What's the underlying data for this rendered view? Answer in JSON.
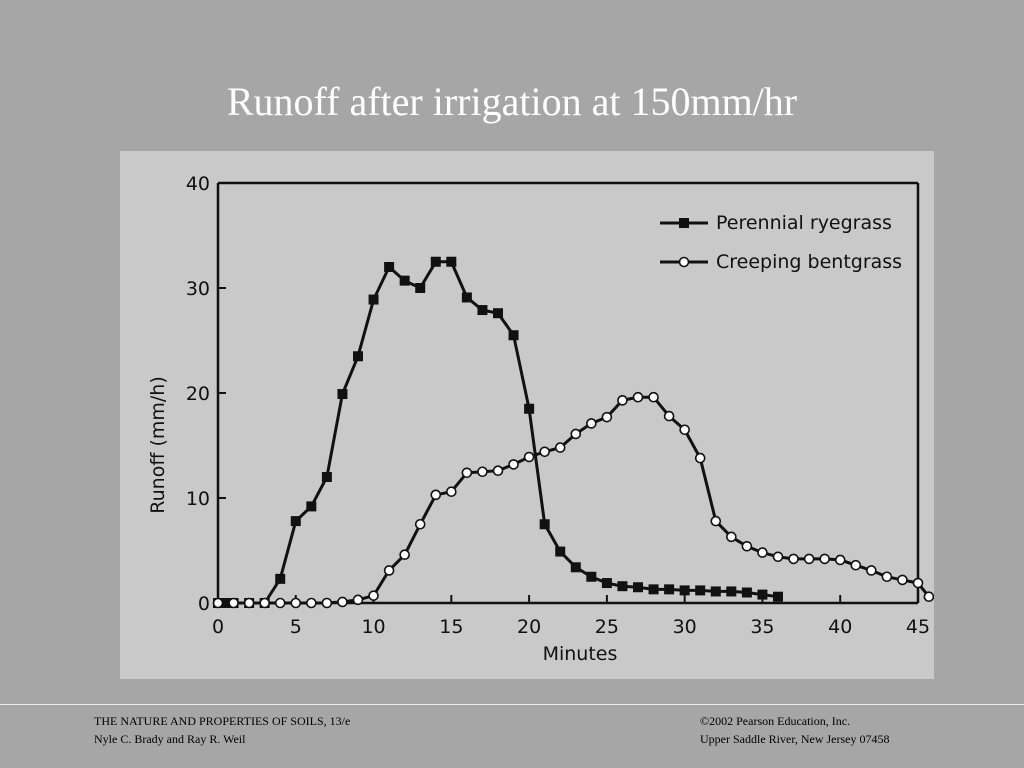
{
  "slide": {
    "title": "Runoff after irrigation at 150mm/hr"
  },
  "footer": {
    "left_line1": "THE NATURE AND PROPERTIES OF SOILS, 13/e",
    "left_line2": "Nyle C. Brady and Ray R. Weil",
    "right_line1": "©2002 Pearson Education, Inc.",
    "right_line2": "Upper Saddle River, New Jersey  07458"
  },
  "colors": {
    "slide_background": "#a6a6a6",
    "figure_background": "#c9c9c9",
    "ink": "#111111"
  },
  "chart_data": {
    "type": "line",
    "xlabel": "Minutes",
    "ylabel": "Runoff (mm/h)",
    "xlim": [
      0,
      45
    ],
    "ylim": [
      0,
      40
    ],
    "x_ticks": [
      "0",
      "5",
      "10",
      "15",
      "20",
      "25",
      "30",
      "35",
      "40",
      "45"
    ],
    "y_ticks": [
      "0",
      "10",
      "20",
      "30",
      "40"
    ],
    "grid": false,
    "legend_position": "top-right",
    "series": [
      {
        "name": "Perennial ryegrass",
        "marker": "filled-square",
        "points": [
          [
            0,
            0
          ],
          [
            0.5,
            0
          ],
          [
            1,
            0
          ],
          [
            2,
            0
          ],
          [
            3,
            0
          ],
          [
            4,
            2.3
          ],
          [
            5,
            7.8
          ],
          [
            6,
            9.2
          ],
          [
            7,
            12
          ],
          [
            8,
            19.9
          ],
          [
            9,
            23.5
          ],
          [
            10,
            28.9
          ],
          [
            11,
            32
          ],
          [
            12,
            30.7
          ],
          [
            13,
            30
          ],
          [
            14,
            32.5
          ],
          [
            15,
            32.5
          ],
          [
            16,
            29.1
          ],
          [
            17,
            27.9
          ],
          [
            18,
            27.6
          ],
          [
            19,
            25.5
          ],
          [
            20,
            18.5
          ],
          [
            21,
            7.5
          ],
          [
            22,
            4.9
          ],
          [
            23,
            3.4
          ],
          [
            24,
            2.5
          ],
          [
            25,
            1.9
          ],
          [
            26,
            1.6
          ],
          [
            27,
            1.5
          ],
          [
            28,
            1.3
          ],
          [
            29,
            1.3
          ],
          [
            30,
            1.2
          ],
          [
            31,
            1.2
          ],
          [
            32,
            1.1
          ],
          [
            33,
            1.1
          ],
          [
            34,
            1
          ],
          [
            35,
            0.8
          ],
          [
            36,
            0.6
          ]
        ]
      },
      {
        "name": "Creeping bentgrass",
        "marker": "open-circle",
        "points": [
          [
            0,
            0
          ],
          [
            1,
            0
          ],
          [
            2,
            0
          ],
          [
            3,
            0
          ],
          [
            4,
            0
          ],
          [
            5,
            0
          ],
          [
            6,
            0
          ],
          [
            7,
            0
          ],
          [
            8,
            0.1
          ],
          [
            9,
            0.3
          ],
          [
            10,
            0.7
          ],
          [
            11,
            3.1
          ],
          [
            12,
            4.6
          ],
          [
            13,
            7.5
          ],
          [
            14,
            10.3
          ],
          [
            15,
            10.6
          ],
          [
            16,
            12.4
          ],
          [
            17,
            12.5
          ],
          [
            18,
            12.6
          ],
          [
            19,
            13.2
          ],
          [
            20,
            13.9
          ],
          [
            21,
            14.4
          ],
          [
            22,
            14.8
          ],
          [
            23,
            16.1
          ],
          [
            24,
            17.1
          ],
          [
            25,
            17.7
          ],
          [
            26,
            19.3
          ],
          [
            27,
            19.6
          ],
          [
            28,
            19.6
          ],
          [
            29,
            17.8
          ],
          [
            30,
            16.5
          ],
          [
            31,
            13.8
          ],
          [
            32,
            7.8
          ],
          [
            33,
            6.3
          ],
          [
            34,
            5.4
          ],
          [
            35,
            4.8
          ],
          [
            36,
            4.4
          ],
          [
            37,
            4.2
          ],
          [
            38,
            4.2
          ],
          [
            39,
            4.2
          ],
          [
            40,
            4.1
          ],
          [
            41,
            3.6
          ],
          [
            42,
            3.1
          ],
          [
            43,
            2.5
          ],
          [
            44,
            2.2
          ],
          [
            45,
            1.9
          ],
          [
            45.7,
            0.6
          ]
        ]
      }
    ]
  }
}
